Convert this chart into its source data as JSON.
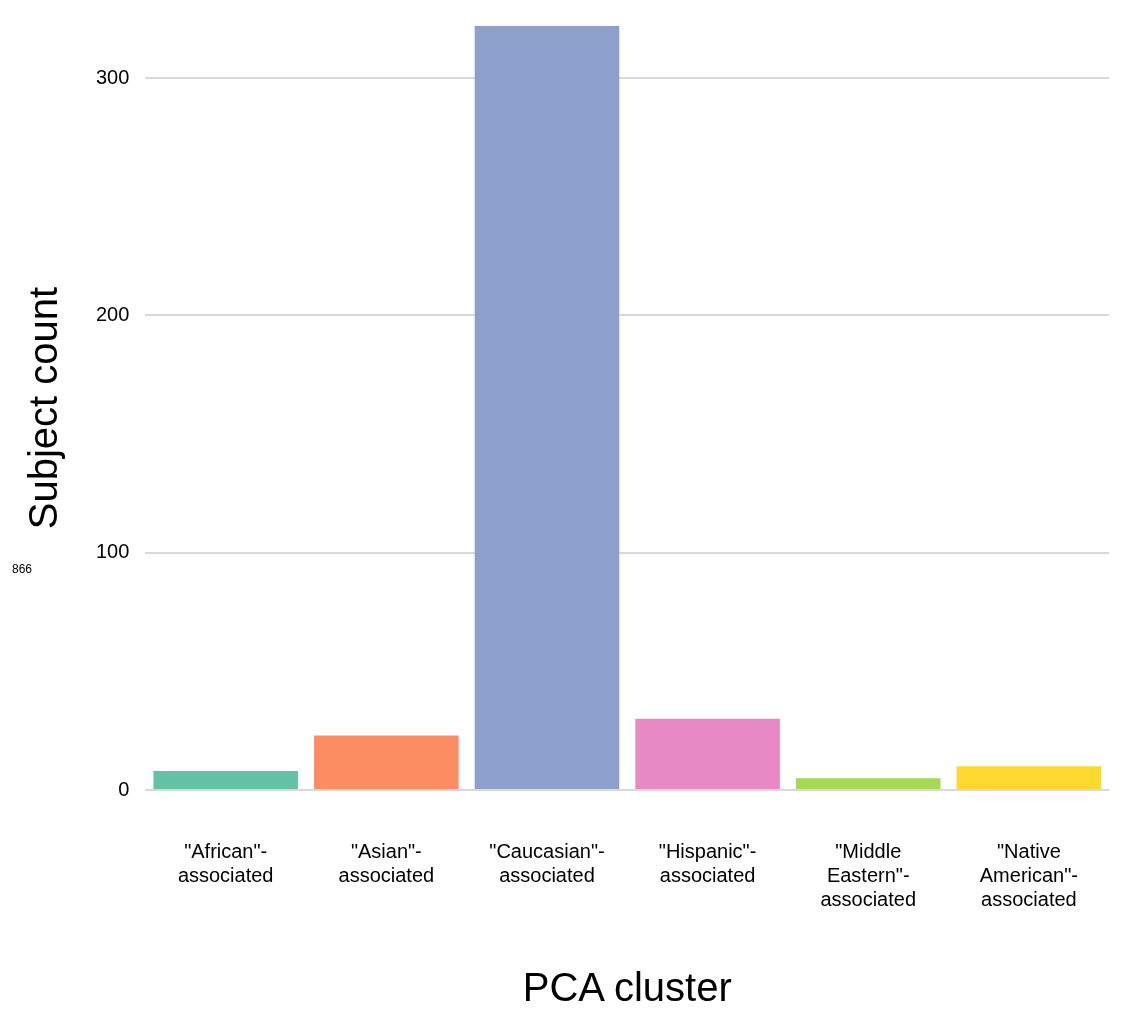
{
  "chart_data": {
    "type": "bar",
    "xlabel": "PCA cluster",
    "ylabel": "Subject count",
    "categories": [
      "\"African\"-associated",
      "\"Asian\"-associated",
      "\"Caucasian\"-associated",
      "\"Hispanic\"-associated",
      "\"Middle Eastern\"-associated",
      "\"Native American\"-associated"
    ],
    "values": [
      8,
      23,
      322,
      30,
      5,
      10
    ],
    "colors": [
      "#66c2a5",
      "#fc8d62",
      "#8da0cb",
      "#e78ac3",
      "#a6d854",
      "#ffd92f"
    ],
    "ylim": [
      0,
      322
    ],
    "yticks": [
      0,
      100,
      200,
      300
    ],
    "grid": "y",
    "legend": false,
    "annotations": [
      "866"
    ]
  }
}
